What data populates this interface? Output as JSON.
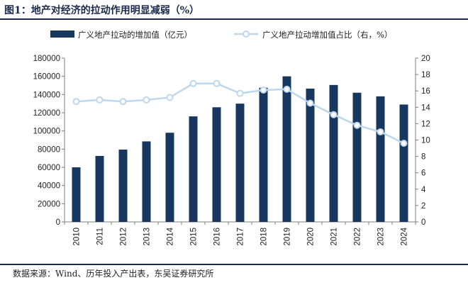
{
  "header": {
    "title": "图1：地产对经济的拉动作用明显减弱（%）"
  },
  "footer": {
    "source": "数据来源：Wind、历年投入产出表，东吴证券研究所"
  },
  "colors": {
    "bar": "#17375e",
    "line": "#bdd7ee",
    "marker_fill": "#ffffff",
    "axis": "#7f7f7f"
  },
  "chart_data": {
    "type": "bar",
    "categories": [
      "2010",
      "2011",
      "2012",
      "2013",
      "2014",
      "2015",
      "2016",
      "2017",
      "2018",
      "2019",
      "2020",
      "2021",
      "2022",
      "2023",
      "2024"
    ],
    "series": [
      {
        "name": "广义地产拉动的增加值（亿元）",
        "type": "bar",
        "axis": "left",
        "values": [
          60000,
          72500,
          79500,
          88500,
          98000,
          116000,
          126000,
          130000,
          147500,
          160000,
          146500,
          150500,
          142000,
          138000,
          129000
        ]
      },
      {
        "name": "广义地产拉动增加值占比（右，%）",
        "type": "line",
        "axis": "right",
        "values": [
          14.7,
          14.9,
          14.7,
          14.9,
          15.2,
          16.9,
          16.9,
          15.7,
          16.1,
          16.2,
          14.5,
          13.1,
          11.8,
          11.0,
          9.6
        ]
      }
    ],
    "left_axis": {
      "ylim": [
        0,
        180000
      ],
      "ticks": [
        "0",
        "20000",
        "40000",
        "60000",
        "80000",
        "100000",
        "120000",
        "140000",
        "160000",
        "180000"
      ]
    },
    "right_axis": {
      "ylim": [
        0,
        20
      ],
      "ticks": [
        "0",
        "2",
        "4",
        "6",
        "8",
        "10",
        "12",
        "14",
        "16",
        "18",
        "20"
      ]
    },
    "legend_position": "top",
    "grid": false
  }
}
